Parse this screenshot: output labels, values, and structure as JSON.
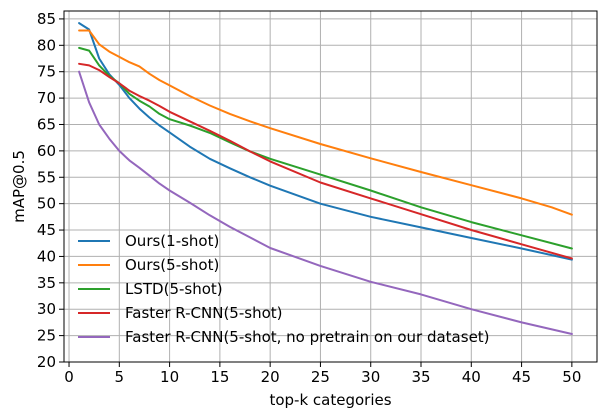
{
  "chart_data": {
    "type": "line",
    "xlabel": "top-k categories",
    "ylabel": "mAP@0.5",
    "xlim": [
      -0.5,
      52.5
    ],
    "ylim": [
      20,
      86.5
    ],
    "xticks": [
      0,
      5,
      10,
      15,
      20,
      25,
      30,
      35,
      40,
      45,
      50
    ],
    "yticks": [
      20,
      25,
      30,
      35,
      40,
      45,
      50,
      55,
      60,
      65,
      70,
      75,
      80,
      85
    ],
    "grid": true,
    "legend_position": "lower-left",
    "series": [
      {
        "name": "Ours(1-shot)",
        "color": "#1f77b4",
        "x": [
          1,
          2,
          3,
          4,
          5,
          6,
          7,
          8,
          9,
          10,
          12,
          14,
          16,
          18,
          20,
          25,
          30,
          35,
          40,
          45,
          50
        ],
        "y": [
          84.2,
          83.0,
          77.5,
          74.5,
          72.5,
          70.0,
          68.0,
          66.3,
          64.8,
          63.5,
          60.8,
          58.5,
          56.7,
          55.0,
          53.4,
          50.0,
          47.5,
          45.5,
          43.5,
          41.5,
          39.4
        ]
      },
      {
        "name": "Ours(5-shot)",
        "color": "#ff7f0e",
        "x": [
          1,
          2,
          3,
          4,
          5,
          6,
          7,
          8,
          9,
          10,
          12,
          14,
          16,
          18,
          20,
          25,
          30,
          35,
          40,
          45,
          48,
          50
        ],
        "y": [
          82.8,
          82.8,
          80.2,
          78.8,
          77.8,
          76.8,
          76.0,
          74.6,
          73.4,
          72.4,
          70.4,
          68.6,
          67.0,
          65.6,
          64.3,
          61.3,
          58.6,
          56.0,
          53.5,
          51.0,
          49.3,
          47.9
        ]
      },
      {
        "name": "LSTD(5-shot)",
        "color": "#2ca02c",
        "x": [
          1,
          2,
          3,
          4,
          5,
          6,
          7,
          8,
          9,
          10,
          12,
          14,
          16,
          18,
          20,
          25,
          30,
          35,
          40,
          45,
          50
        ],
        "y": [
          79.5,
          79.0,
          76.2,
          74.2,
          72.8,
          70.8,
          69.5,
          68.4,
          67.0,
          66.0,
          64.8,
          63.4,
          61.6,
          59.9,
          58.5,
          55.5,
          52.5,
          49.3,
          46.5,
          44.0,
          41.5
        ]
      },
      {
        "name": "Faster R-CNN(5-shot)",
        "color": "#d62728",
        "x": [
          1,
          2,
          3,
          4,
          5,
          6,
          7,
          8,
          9,
          10,
          12,
          14,
          16,
          18,
          20,
          25,
          30,
          35,
          40,
          45,
          50
        ],
        "y": [
          76.5,
          76.2,
          75.3,
          74.0,
          72.8,
          71.4,
          70.4,
          69.5,
          68.5,
          67.4,
          65.6,
          63.8,
          61.9,
          59.9,
          58.0,
          54.0,
          51.0,
          48.0,
          45.0,
          42.3,
          39.6
        ]
      },
      {
        "name": "Faster R-CNN(5-shot, no pretrain on our dataset)",
        "color": "#9467bd",
        "x": [
          1,
          2,
          3,
          4,
          5,
          6,
          7,
          8,
          9,
          10,
          12,
          14,
          16,
          18,
          20,
          25,
          30,
          35,
          40,
          45,
          50
        ],
        "y": [
          75.0,
          69.2,
          65.0,
          62.3,
          60.0,
          58.2,
          56.8,
          55.3,
          53.8,
          52.5,
          50.2,
          47.8,
          45.6,
          43.6,
          41.6,
          38.2,
          35.2,
          32.8,
          30.0,
          27.5,
          25.3
        ]
      }
    ]
  }
}
